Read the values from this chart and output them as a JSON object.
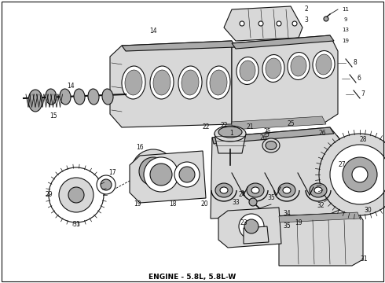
{
  "title": "ENGINE - 5.8L, 5.8L-W",
  "background_color": "#ffffff",
  "border_color": "#000000",
  "text_color": "#000000",
  "title_fontsize": 6.5,
  "fig_width": 4.9,
  "fig_height": 3.6,
  "dpi": 100,
  "label_color": "#111111",
  "label_fontsize": 5.5,
  "lw_main": 0.8,
  "lw_thin": 0.4,
  "fc_part": "#d8d8d8",
  "fc_white": "#ffffff",
  "fc_dark": "#aaaaaa",
  "ec": "#111111"
}
